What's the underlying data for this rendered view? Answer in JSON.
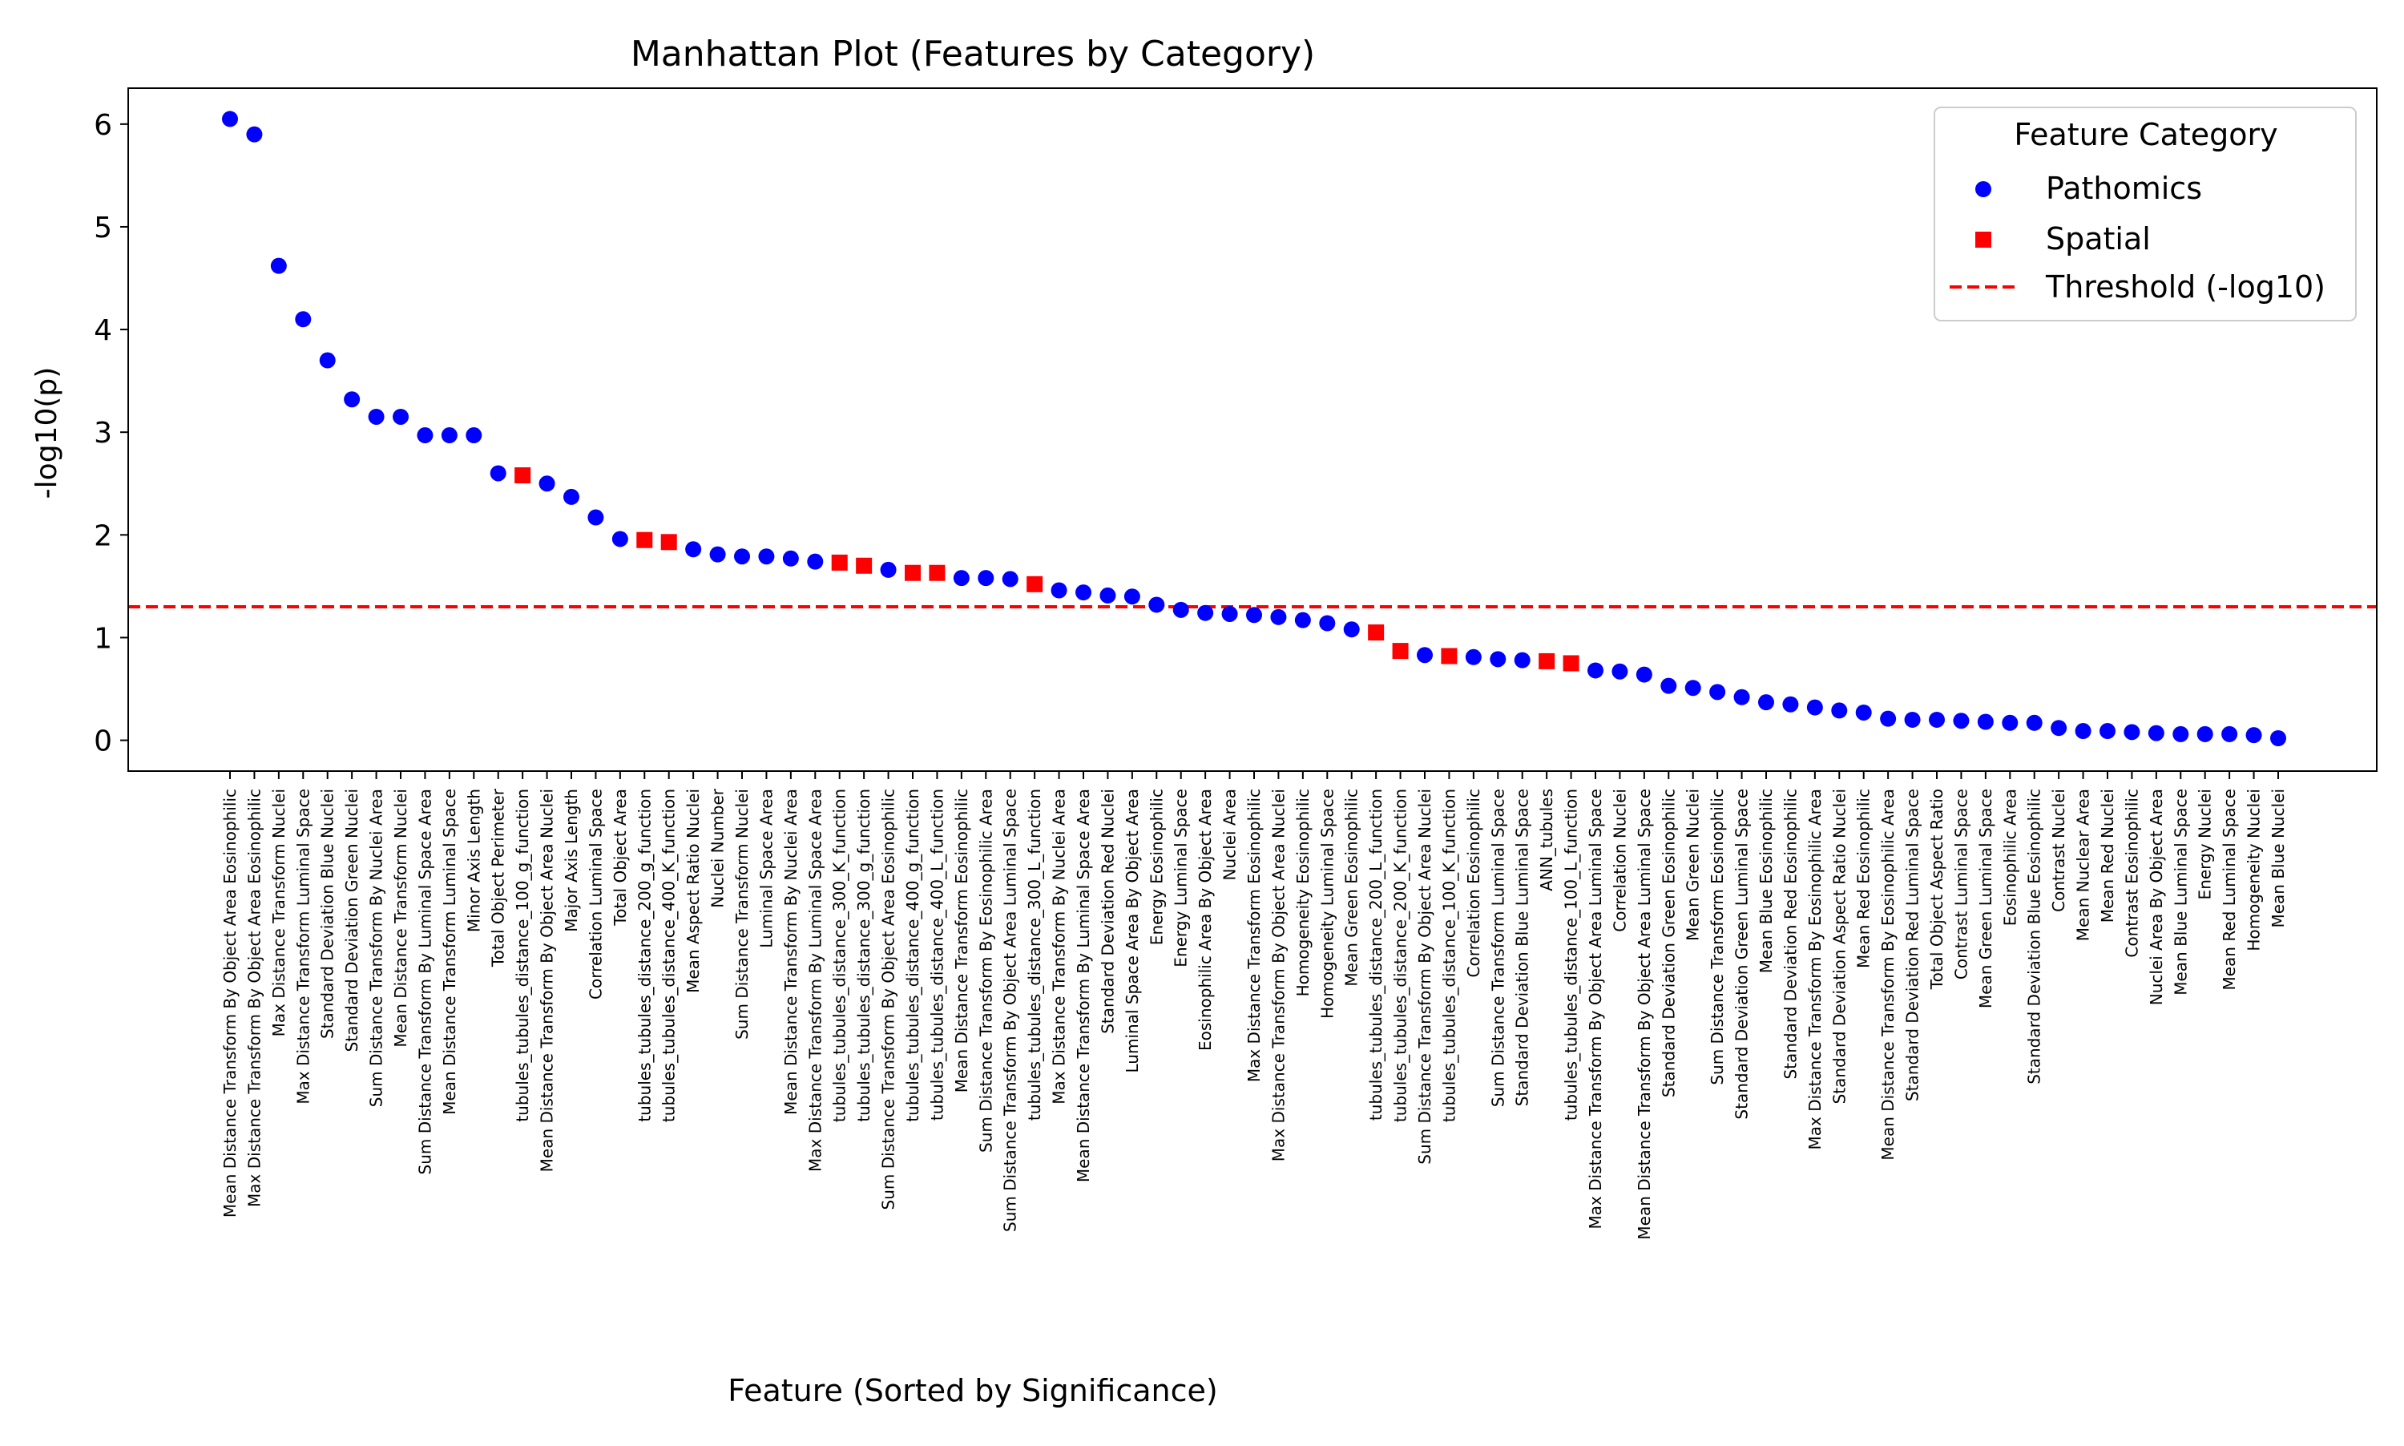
{
  "chart_data": {
    "type": "scatter",
    "title": "Manhattan Plot (Features by Category)",
    "xlabel": "Feature (Sorted by Significance)",
    "ylabel": "-log10(p)",
    "ylim": [
      -0.3,
      6.35
    ],
    "yticks": [
      0,
      1,
      2,
      3,
      4,
      5,
      6
    ],
    "threshold": 1.3,
    "threshold_color": "#ff0000",
    "grid": false,
    "legend": {
      "title": "Feature Category",
      "position": "top-right",
      "entries": [
        {
          "label": "Pathomics",
          "marker": "circle",
          "color": "#0000ff"
        },
        {
          "label": "Spatial",
          "marker": "square",
          "color": "#ff0000"
        },
        {
          "label": "Threshold (-log10)",
          "marker": "dashed-line",
          "color": "#ff0000"
        }
      ]
    },
    "categories": {
      "Pathomics": {
        "color": "#0000ff",
        "marker": "circle"
      },
      "Spatial": {
        "color": "#ff0000",
        "marker": "square"
      }
    },
    "points": [
      {
        "feature": "Mean Distance Transform By Object Area Eosinophilic",
        "category": "Pathomics",
        "value": 6.05
      },
      {
        "feature": "Max Distance Transform By Object Area Eosinophilic",
        "category": "Pathomics",
        "value": 5.9
      },
      {
        "feature": "Max Distance Transform Nuclei",
        "category": "Pathomics",
        "value": 4.62
      },
      {
        "feature": "Max Distance Transform Luminal Space",
        "category": "Pathomics",
        "value": 4.1
      },
      {
        "feature": "Standard Deviation Blue Nuclei",
        "category": "Pathomics",
        "value": 3.7
      },
      {
        "feature": "Standard Deviation Green Nuclei",
        "category": "Pathomics",
        "value": 3.32
      },
      {
        "feature": "Sum Distance Transform By Nuclei Area",
        "category": "Pathomics",
        "value": 3.15
      },
      {
        "feature": "Mean Distance Transform Nuclei",
        "category": "Pathomics",
        "value": 3.15
      },
      {
        "feature": "Sum Distance Transform By Luminal Space Area",
        "category": "Pathomics",
        "value": 2.97
      },
      {
        "feature": "Mean Distance Transform Luminal Space",
        "category": "Pathomics",
        "value": 2.97
      },
      {
        "feature": "Minor Axis Length",
        "category": "Pathomics",
        "value": 2.97
      },
      {
        "feature": "Total Object Perimeter",
        "category": "Pathomics",
        "value": 2.6
      },
      {
        "feature": "tubules_tubules_distance_100_g_function",
        "category": "Spatial",
        "value": 2.58
      },
      {
        "feature": "Mean Distance Transform By Object Area Nuclei",
        "category": "Pathomics",
        "value": 2.5
      },
      {
        "feature": "Major Axis Length",
        "category": "Pathomics",
        "value": 2.37
      },
      {
        "feature": "Correlation Luminal Space",
        "category": "Pathomics",
        "value": 2.17
      },
      {
        "feature": "Total Object Area",
        "category": "Pathomics",
        "value": 1.96
      },
      {
        "feature": "tubules_tubules_distance_200_g_function",
        "category": "Spatial",
        "value": 1.95
      },
      {
        "feature": "tubules_tubules_distance_400_K_function",
        "category": "Spatial",
        "value": 1.93
      },
      {
        "feature": "Mean Aspect Ratio Nuclei",
        "category": "Pathomics",
        "value": 1.86
      },
      {
        "feature": "Nuclei Number",
        "category": "Pathomics",
        "value": 1.81
      },
      {
        "feature": "Sum Distance Transform Nuclei",
        "category": "Pathomics",
        "value": 1.79
      },
      {
        "feature": "Luminal Space Area",
        "category": "Pathomics",
        "value": 1.79
      },
      {
        "feature": "Mean Distance Transform By Nuclei Area",
        "category": "Pathomics",
        "value": 1.77
      },
      {
        "feature": "Max Distance Transform By Luminal Space Area",
        "category": "Pathomics",
        "value": 1.74
      },
      {
        "feature": "tubules_tubules_distance_300_K_function",
        "category": "Spatial",
        "value": 1.73
      },
      {
        "feature": "tubules_tubules_distance_300_g_function",
        "category": "Spatial",
        "value": 1.7
      },
      {
        "feature": "Sum Distance Transform By Object Area Eosinophilic",
        "category": "Pathomics",
        "value": 1.66
      },
      {
        "feature": "tubules_tubules_distance_400_g_function",
        "category": "Spatial",
        "value": 1.63
      },
      {
        "feature": "tubules_tubules_distance_400_L_function",
        "category": "Spatial",
        "value": 1.63
      },
      {
        "feature": "Mean Distance Transform Eosinophilic",
        "category": "Pathomics",
        "value": 1.58
      },
      {
        "feature": "Sum Distance Transform By Eosinophilic Area",
        "category": "Pathomics",
        "value": 1.58
      },
      {
        "feature": "Sum Distance Transform By Object Area Luminal Space",
        "category": "Pathomics",
        "value": 1.57
      },
      {
        "feature": "tubules_tubules_distance_300_L_function",
        "category": "Spatial",
        "value": 1.52
      },
      {
        "feature": "Max Distance Transform By Nuclei Area",
        "category": "Pathomics",
        "value": 1.46
      },
      {
        "feature": "Mean Distance Transform By Luminal Space Area",
        "category": "Pathomics",
        "value": 1.44
      },
      {
        "feature": "Standard Deviation Red Nuclei",
        "category": "Pathomics",
        "value": 1.41
      },
      {
        "feature": "Luminal Space Area By Object Area",
        "category": "Pathomics",
        "value": 1.4
      },
      {
        "feature": "Energy Eosinophilic",
        "category": "Pathomics",
        "value": 1.32
      },
      {
        "feature": "Energy Luminal Space",
        "category": "Pathomics",
        "value": 1.27
      },
      {
        "feature": "Eosinophilic Area By Object Area",
        "category": "Pathomics",
        "value": 1.24
      },
      {
        "feature": "Nuclei Area",
        "category": "Pathomics",
        "value": 1.23
      },
      {
        "feature": "Max Distance Transform Eosinophilic",
        "category": "Pathomics",
        "value": 1.22
      },
      {
        "feature": "Max Distance Transform By Object Area Nuclei",
        "category": "Pathomics",
        "value": 1.2
      },
      {
        "feature": "Homogeneity Eosinophilic",
        "category": "Pathomics",
        "value": 1.17
      },
      {
        "feature": "Homogeneity Luminal Space",
        "category": "Pathomics",
        "value": 1.14
      },
      {
        "feature": "Mean Green Eosinophilic",
        "category": "Pathomics",
        "value": 1.08
      },
      {
        "feature": "tubules_tubules_distance_200_L_function",
        "category": "Spatial",
        "value": 1.05
      },
      {
        "feature": "tubules_tubules_distance_200_K_function",
        "category": "Spatial",
        "value": 0.87
      },
      {
        "feature": "Sum Distance Transform By Object Area Nuclei",
        "category": "Pathomics",
        "value": 0.83
      },
      {
        "feature": "tubules_tubules_distance_100_K_function",
        "category": "Spatial",
        "value": 0.82
      },
      {
        "feature": "Correlation Eosinophilic",
        "category": "Pathomics",
        "value": 0.81
      },
      {
        "feature": "Sum Distance Transform Luminal Space",
        "category": "Pathomics",
        "value": 0.79
      },
      {
        "feature": "Standard Deviation Blue Luminal Space",
        "category": "Pathomics",
        "value": 0.78
      },
      {
        "feature": "ANN_tubules",
        "category": "Spatial",
        "value": 0.77
      },
      {
        "feature": "tubules_tubules_distance_100_L_function",
        "category": "Spatial",
        "value": 0.75
      },
      {
        "feature": "Max Distance Transform By Object Area Luminal Space",
        "category": "Pathomics",
        "value": 0.68
      },
      {
        "feature": "Correlation Nuclei",
        "category": "Pathomics",
        "value": 0.67
      },
      {
        "feature": "Mean Distance Transform By Object Area Luminal Space",
        "category": "Pathomics",
        "value": 0.64
      },
      {
        "feature": "Standard Deviation Green Eosinophilic",
        "category": "Pathomics",
        "value": 0.53
      },
      {
        "feature": "Mean Green Nuclei",
        "category": "Pathomics",
        "value": 0.51
      },
      {
        "feature": "Sum Distance Transform Eosinophilic",
        "category": "Pathomics",
        "value": 0.47
      },
      {
        "feature": "Standard Deviation Green Luminal Space",
        "category": "Pathomics",
        "value": 0.42
      },
      {
        "feature": "Mean Blue Eosinophilic",
        "category": "Pathomics",
        "value": 0.37
      },
      {
        "feature": "Standard Deviation Red Eosinophilic",
        "category": "Pathomics",
        "value": 0.35
      },
      {
        "feature": "Max Distance Transform By Eosinophilic Area",
        "category": "Pathomics",
        "value": 0.32
      },
      {
        "feature": "Standard Deviation Aspect Ratio Nuclei",
        "category": "Pathomics",
        "value": 0.29
      },
      {
        "feature": "Mean Red Eosinophilic",
        "category": "Pathomics",
        "value": 0.27
      },
      {
        "feature": "Mean Distance Transform By Eosinophilic Area",
        "category": "Pathomics",
        "value": 0.21
      },
      {
        "feature": "Standard Deviation Red Luminal Space",
        "category": "Pathomics",
        "value": 0.2
      },
      {
        "feature": "Total Object Aspect Ratio",
        "category": "Pathomics",
        "value": 0.2
      },
      {
        "feature": "Contrast Luminal Space",
        "category": "Pathomics",
        "value": 0.19
      },
      {
        "feature": "Mean Green Luminal Space",
        "category": "Pathomics",
        "value": 0.18
      },
      {
        "feature": "Eosinophilic Area",
        "category": "Pathomics",
        "value": 0.17
      },
      {
        "feature": "Standard Deviation Blue Eosinophilic",
        "category": "Pathomics",
        "value": 0.17
      },
      {
        "feature": "Contrast Nuclei",
        "category": "Pathomics",
        "value": 0.12
      },
      {
        "feature": "Mean Nuclear Area",
        "category": "Pathomics",
        "value": 0.09
      },
      {
        "feature": "Mean Red Nuclei",
        "category": "Pathomics",
        "value": 0.09
      },
      {
        "feature": "Contrast Eosinophilic",
        "category": "Pathomics",
        "value": 0.08
      },
      {
        "feature": "Nuclei Area By Object Area",
        "category": "Pathomics",
        "value": 0.07
      },
      {
        "feature": "Mean Blue Luminal Space",
        "category": "Pathomics",
        "value": 0.06
      },
      {
        "feature": "Energy Nuclei",
        "category": "Pathomics",
        "value": 0.06
      },
      {
        "feature": "Mean Red Luminal Space",
        "category": "Pathomics",
        "value": 0.06
      },
      {
        "feature": "Homogeneity Nuclei",
        "category": "Pathomics",
        "value": 0.05
      },
      {
        "feature": "Mean Blue Nuclei",
        "category": "Pathomics",
        "value": 0.02
      }
    ]
  }
}
